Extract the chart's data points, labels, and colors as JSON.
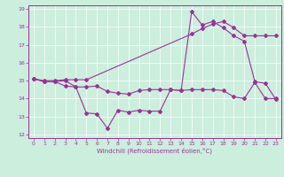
{
  "xlabel": "Windchill (Refroidissement éolien,°C)",
  "background_color": "#cceedd",
  "line_color": "#993399",
  "xlim": [
    -0.5,
    23.5
  ],
  "ylim": [
    11.8,
    19.2
  ],
  "yticks": [
    12,
    13,
    14,
    15,
    16,
    17,
    18,
    19
  ],
  "xticks": [
    0,
    1,
    2,
    3,
    4,
    5,
    6,
    7,
    8,
    9,
    10,
    11,
    12,
    13,
    14,
    15,
    16,
    17,
    18,
    19,
    20,
    21,
    22,
    23
  ],
  "line1_x": [
    0,
    1,
    2,
    3,
    4,
    5,
    6,
    7,
    8,
    9,
    10,
    11,
    12,
    13,
    14,
    15,
    16,
    17,
    18,
    19,
    20,
    21,
    22,
    23
  ],
  "line1_y": [
    15.1,
    14.95,
    14.95,
    14.7,
    14.65,
    14.65,
    14.7,
    14.4,
    14.3,
    14.25,
    14.45,
    14.5,
    14.5,
    14.5,
    14.45,
    14.5,
    14.5,
    14.5,
    14.45,
    14.1,
    14.0,
    14.9,
    14.0,
    14.0
  ],
  "line2_x": [
    0,
    1,
    2,
    3,
    4,
    5,
    15,
    16,
    17,
    18,
    19,
    20,
    21,
    22,
    23
  ],
  "line2_y": [
    15.1,
    15.0,
    15.0,
    15.05,
    15.05,
    15.05,
    17.6,
    17.9,
    18.15,
    18.3,
    17.95,
    17.5,
    17.5,
    17.5,
    17.5
  ],
  "line3_x": [
    0,
    1,
    2,
    3,
    4,
    5,
    6,
    7,
    8,
    9,
    10,
    11,
    12,
    13,
    14,
    15,
    16,
    17,
    18,
    19,
    20,
    21,
    22,
    23
  ],
  "line3_y": [
    15.1,
    14.95,
    14.95,
    15.0,
    14.65,
    13.2,
    13.15,
    12.35,
    13.35,
    13.25,
    13.35,
    13.3,
    13.3,
    14.5,
    14.45,
    18.85,
    18.1,
    18.3,
    17.95,
    17.5,
    17.2,
    14.95,
    14.85,
    13.95
  ]
}
